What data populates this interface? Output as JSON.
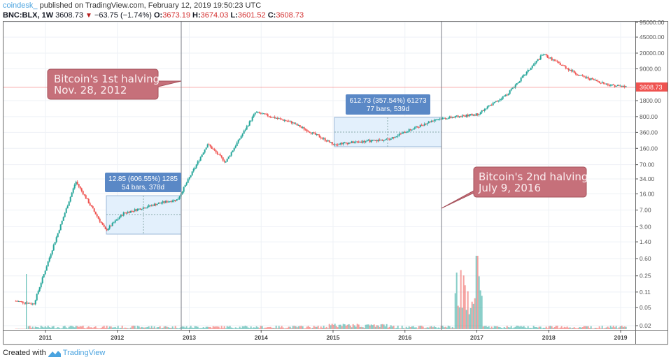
{
  "header": {
    "brand": "coindesk_",
    "published": "published on TradingView.com, February 12, 2019 19:50:23 UTC",
    "symbol": "BNC:BLX, 1W",
    "last": "3608.73",
    "change": "−63.75 (−1.74%)",
    "o_label": "O:",
    "o_value": "3673.19",
    "h_label": "H:",
    "h_value": "3674.03",
    "l_label": "L:",
    "l_value": "3601.52",
    "c_label": "C:",
    "c_value": "3608.73"
  },
  "footer": {
    "created_with": "Created with",
    "tradingview": "TradingView"
  },
  "colors": {
    "up": "#26a69a",
    "down": "#ef5350",
    "callout_fill": "#c6707a",
    "callout_stroke": "#a4505a",
    "measure_fill": "#e3f0fc",
    "measure_label": "#5a88c6",
    "price_label": "#ef5350",
    "grid": "#f0f3fa",
    "axis": "#555555"
  },
  "annotations": {
    "halving1": {
      "line1": "Bitcoin's 1st halving",
      "line2": "Nov. 28, 2012"
    },
    "halving2": {
      "line1": "Bitcoin's 2nd halving",
      "line2": "July 9, 2016"
    },
    "measure1": {
      "line1": "12.85 (606.55%) 1285",
      "line2": "54 bars, 378d"
    },
    "measure2": {
      "line1": "612.73 (357.54%) 61273",
      "line2": "77 bars, 539d"
    }
  },
  "price_label": "3608.73",
  "chart_data": {
    "type": "candlestick",
    "title": "BNC:BLX, 1W",
    "xlabel": "",
    "ylabel": "",
    "y_scale": "log",
    "ylim": [
      0.02,
      95000
    ],
    "grid": true,
    "legend": "none",
    "x_ticks": [
      "2011",
      "2012",
      "2013",
      "2014",
      "2015",
      "2016",
      "2017",
      "2018",
      "2019"
    ],
    "y_ticks": [
      "95000.00",
      "45000.00",
      "20000.00",
      "9000.00",
      "1800.00",
      "800.00",
      "360.00",
      "160.00",
      "70.00",
      "34.00",
      "16.00",
      "7.00",
      "3.00",
      "1.40",
      "0.60",
      "0.25",
      "0.11",
      "0.05",
      "0.02"
    ],
    "last_price": 3608.73,
    "ohlc_last": {
      "open": 3673.19,
      "high": 3674.03,
      "low": 3601.52,
      "close": 3608.73,
      "change": -63.75,
      "change_pct": -1.74
    },
    "vertical_lines": [
      {
        "label": "Bitcoin's 1st halving",
        "date": "Nov. 28, 2012"
      },
      {
        "label": "Bitcoin's 2nd halving",
        "date": "July 9, 2016"
      }
    ],
    "measurements": [
      {
        "change": 12.85,
        "change_pct": 606.55,
        "ticks": 1285,
        "bars": 54,
        "days": 378
      },
      {
        "change": 612.73,
        "change_pct": 357.54,
        "ticks": 61273,
        "bars": 77,
        "days": 539
      }
    ],
    "price_path_approx": [
      {
        "t": "2010-08",
        "price": 0.07
      },
      {
        "t": "2010-11",
        "price": 0.06
      },
      {
        "t": "2011-02",
        "price": 0.9
      },
      {
        "t": "2011-06",
        "price": 30
      },
      {
        "t": "2011-11",
        "price": 2.5
      },
      {
        "t": "2012-02",
        "price": 6
      },
      {
        "t": "2012-08",
        "price": 10
      },
      {
        "t": "2012-11",
        "price": 12
      },
      {
        "t": "2013-04",
        "price": 200
      },
      {
        "t": "2013-07",
        "price": 80
      },
      {
        "t": "2013-12",
        "price": 1000
      },
      {
        "t": "2014-06",
        "price": 600
      },
      {
        "t": "2015-01",
        "price": 200
      },
      {
        "t": "2015-10",
        "price": 250
      },
      {
        "t": "2016-06",
        "price": 700
      },
      {
        "t": "2017-01",
        "price": 900
      },
      {
        "t": "2017-06",
        "price": 2500
      },
      {
        "t": "2017-12",
        "price": 19000
      },
      {
        "t": "2018-06",
        "price": 6500
      },
      {
        "t": "2018-11",
        "price": 4000
      },
      {
        "t": "2019-02",
        "price": 3608.73
      }
    ]
  }
}
